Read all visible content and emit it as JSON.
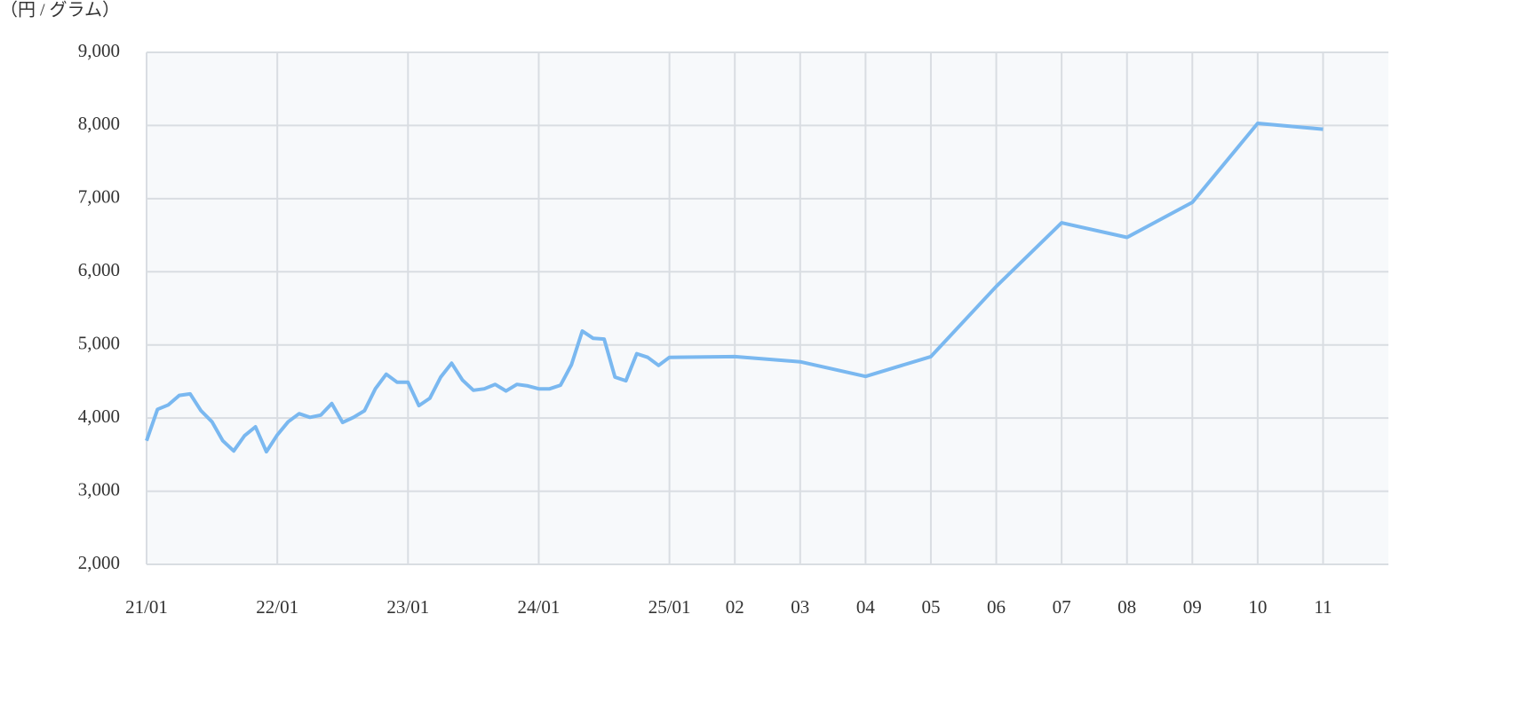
{
  "chart_data": {
    "type": "line",
    "y_label": "（円 / グラム）",
    "categories": [
      "21/01",
      null,
      null,
      null,
      null,
      null,
      null,
      null,
      null,
      null,
      null,
      null,
      "22/01",
      null,
      null,
      null,
      null,
      null,
      null,
      null,
      null,
      null,
      null,
      null,
      "23/01",
      null,
      null,
      null,
      null,
      null,
      null,
      null,
      null,
      null,
      null,
      null,
      "24/01",
      null,
      null,
      null,
      null,
      null,
      null,
      null,
      null,
      null,
      null,
      null,
      "25/01",
      "02",
      "03",
      "04",
      "05",
      "06",
      "07",
      "08",
      "09",
      "10",
      "11"
    ],
    "series": [
      {
        "color": "#7ab8f0",
        "values": [
          3690,
          4120,
          4180,
          4310,
          4330,
          4100,
          3950,
          3690,
          3550,
          3760,
          3880,
          3540,
          3770,
          3950,
          4060,
          4010,
          4040,
          4200,
          3940,
          4010,
          4100,
          4400,
          4600,
          4490,
          4490,
          4170,
          4270,
          4560,
          4750,
          4520,
          4380,
          4400,
          4460,
          4370,
          4460,
          4440,
          4400,
          4400,
          4450,
          4730,
          5190,
          5090,
          5080,
          4560,
          4510,
          4880,
          4830,
          4720,
          4830,
          4840,
          4770,
          4570,
          4840,
          5800,
          6670,
          6470,
          6950,
          8030,
          7950
        ]
      }
    ],
    "ylim": [
      2000,
      9000
    ],
    "yticks": [
      {
        "value": 2000,
        "label": "2,000"
      },
      {
        "value": 3000,
        "label": "3,000"
      },
      {
        "value": 4000,
        "label": "4,000"
      },
      {
        "value": 5000,
        "label": "5,000"
      },
      {
        "value": 6000,
        "label": "6,000"
      },
      {
        "value": 7000,
        "label": "7,000"
      },
      {
        "value": 8000,
        "label": "8,000"
      },
      {
        "value": 9000,
        "label": "9,000"
      }
    ],
    "grid": true
  }
}
